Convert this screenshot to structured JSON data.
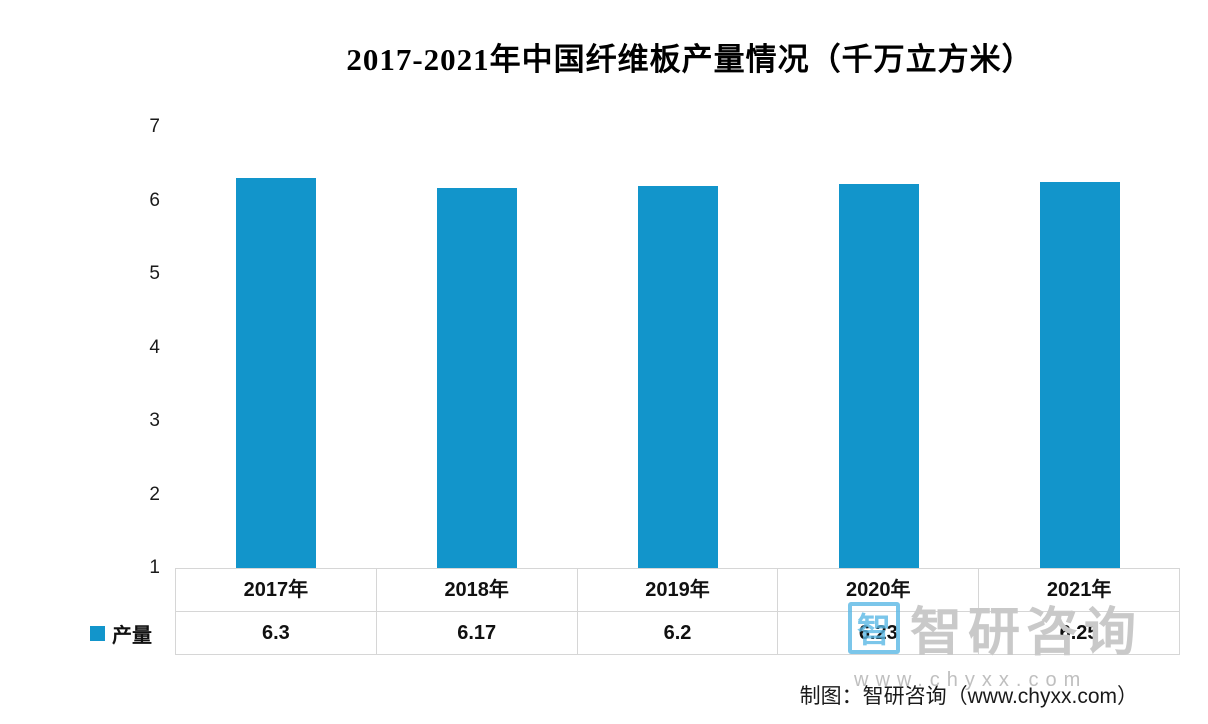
{
  "chart_data": {
    "type": "bar",
    "title": "2017-2021年中国纤维板产量情况（千万立方米）",
    "categories": [
      "2017年",
      "2018年",
      "2019年",
      "2020年",
      "2021年"
    ],
    "series": [
      {
        "name": "产量",
        "values": [
          6.3,
          6.17,
          6.2,
          6.23,
          6.25
        ]
      }
    ],
    "value_labels": [
      "6.3",
      "6.17",
      "6.2",
      "6.23",
      "6.25"
    ],
    "y_ticks": [
      1,
      2,
      3,
      4,
      5,
      6,
      7
    ],
    "ylim": [
      1,
      7.2
    ],
    "grid": false,
    "legend": "产量",
    "legend_position": "bottom-left",
    "bar_color": "#1295cb"
  },
  "watermark": {
    "logo_char": "智",
    "brand": "智研咨询",
    "url": "www.chyxx.com"
  },
  "footer": {
    "credit": "制图：智研咨询（www.chyxx.com）"
  }
}
